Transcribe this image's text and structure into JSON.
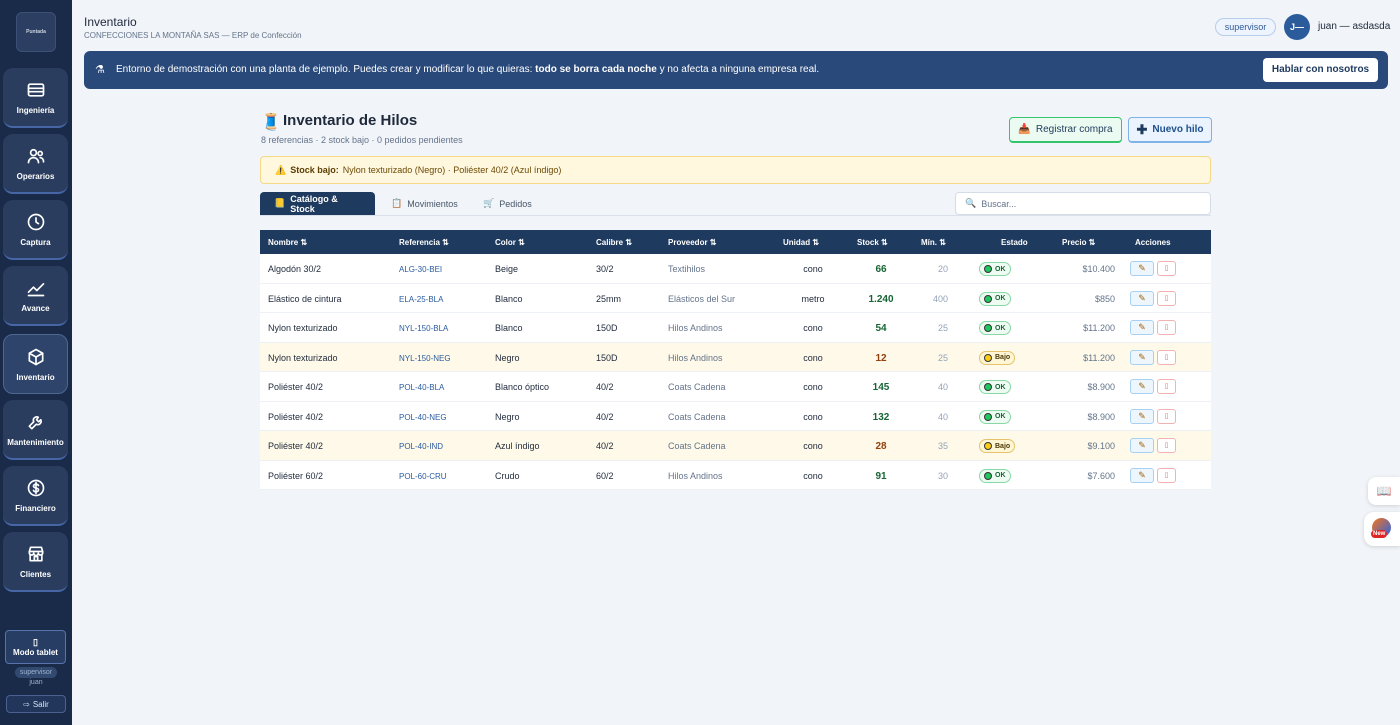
{
  "sidebar": {
    "logo": "Puntada",
    "items": [
      {
        "label": "Ingeniería",
        "icon": "fabric-roll-icon"
      },
      {
        "label": "Operarios",
        "icon": "users-icon"
      },
      {
        "label": "Captura",
        "icon": "clock-icon"
      },
      {
        "label": "Avance",
        "icon": "chart-line-icon"
      },
      {
        "label": "Inventario",
        "icon": "box-icon"
      },
      {
        "label": "Mantenimiento",
        "icon": "wrench-icon"
      },
      {
        "label": "Financiero",
        "icon": "dollar-icon"
      },
      {
        "label": "Clientes",
        "icon": "store-icon"
      }
    ],
    "tablet": "Modo tablet",
    "role": "supervisor",
    "user": "juan",
    "logout": "Salir"
  },
  "header": {
    "title": "Inventario",
    "subtitle": "CONFECCIONES LA MONTAÑA SAS — ERP de Confección",
    "role_badge": "supervisor",
    "avatar": "J—",
    "user_name": "juan — asdasda"
  },
  "banner": {
    "text_pre": "Entorno de demostración con una planta de ejemplo. Puedes crear y modificar lo que quieras: ",
    "text_bold": "todo se borra cada noche",
    "text_post": " y no afecta a ninguna empresa real.",
    "button": "Hablar con nosotros"
  },
  "page": {
    "title": "Inventario de Hilos",
    "subtitle": "8 referencias · 2 stock bajo · 0 pedidos pendientes",
    "btn_purchase": "Registrar compra",
    "btn_new": "Nuevo hilo"
  },
  "alert": {
    "label": "Stock bajo:",
    "text": "Nylon texturizado (Negro) · Poliéster 40/2 (Azul índigo)"
  },
  "tabs": [
    {
      "label": "Catálogo & Stock"
    },
    {
      "label": "Movimientos"
    },
    {
      "label": "Pedidos"
    }
  ],
  "search": {
    "placeholder": "Buscar..."
  },
  "table": {
    "headers": {
      "nombre": "Nombre ⇅",
      "referencia": "Referencia ⇅",
      "color": "Color ⇅",
      "calibre": "Calibre ⇅",
      "proveedor": "Proveedor ⇅",
      "unidad": "Unidad ⇅",
      "stock": "Stock ⇅",
      "min": "Mín. ⇅",
      "estado": "Estado",
      "precio": "Precio ⇅",
      "acciones": "Acciones"
    },
    "rows": [
      {
        "nombre": "Algodón 30/2",
        "ref": "ALG-30-BEI",
        "color": "Beige",
        "calibre": "30/2",
        "proveedor": "Textihilos",
        "unidad": "cono",
        "stock": "66",
        "min": "20",
        "estado": "OK",
        "precio": "$10.400"
      },
      {
        "nombre": "Elástico de cintura",
        "ref": "ELA-25-BLA",
        "color": "Blanco",
        "calibre": "25mm",
        "proveedor": "Elásticos del Sur",
        "unidad": "metro",
        "stock": "1.240",
        "min": "400",
        "estado": "OK",
        "precio": "$850"
      },
      {
        "nombre": "Nylon texturizado",
        "ref": "NYL-150-BLA",
        "color": "Blanco",
        "calibre": "150D",
        "proveedor": "Hilos Andinos",
        "unidad": "cono",
        "stock": "54",
        "min": "25",
        "estado": "OK",
        "precio": "$11.200"
      },
      {
        "nombre": "Nylon texturizado",
        "ref": "NYL-150-NEG",
        "color": "Negro",
        "calibre": "150D",
        "proveedor": "Hilos Andinos",
        "unidad": "cono",
        "stock": "12",
        "min": "25",
        "estado": "Bajo",
        "precio": "$11.200"
      },
      {
        "nombre": "Poliéster 40/2",
        "ref": "POL-40-BLA",
        "color": "Blanco óptico",
        "calibre": "40/2",
        "proveedor": "Coats Cadena",
        "unidad": "cono",
        "stock": "145",
        "min": "40",
        "estado": "OK",
        "precio": "$8.900"
      },
      {
        "nombre": "Poliéster 40/2",
        "ref": "POL-40-NEG",
        "color": "Negro",
        "calibre": "40/2",
        "proveedor": "Coats Cadena",
        "unidad": "cono",
        "stock": "132",
        "min": "40",
        "estado": "OK",
        "precio": "$8.900"
      },
      {
        "nombre": "Poliéster 40/2",
        "ref": "POL-40-IND",
        "color": "Azul índigo",
        "calibre": "40/2",
        "proveedor": "Coats Cadena",
        "unidad": "cono",
        "stock": "28",
        "min": "35",
        "estado": "Bajo",
        "precio": "$9.100"
      },
      {
        "nombre": "Poliéster 60/2",
        "ref": "POL-60-CRU",
        "color": "Crudo",
        "calibre": "60/2",
        "proveedor": "Hilos Andinos",
        "unidad": "cono",
        "stock": "91",
        "min": "30",
        "estado": "OK",
        "precio": "$7.600"
      }
    ]
  },
  "floating": {
    "new_badge": "New"
  },
  "colors": {
    "sidebar": "#1a2b4a",
    "primary": "#1e3a5f",
    "banner": "#29497a",
    "ok": "#22c55e",
    "low": "#facc15"
  }
}
